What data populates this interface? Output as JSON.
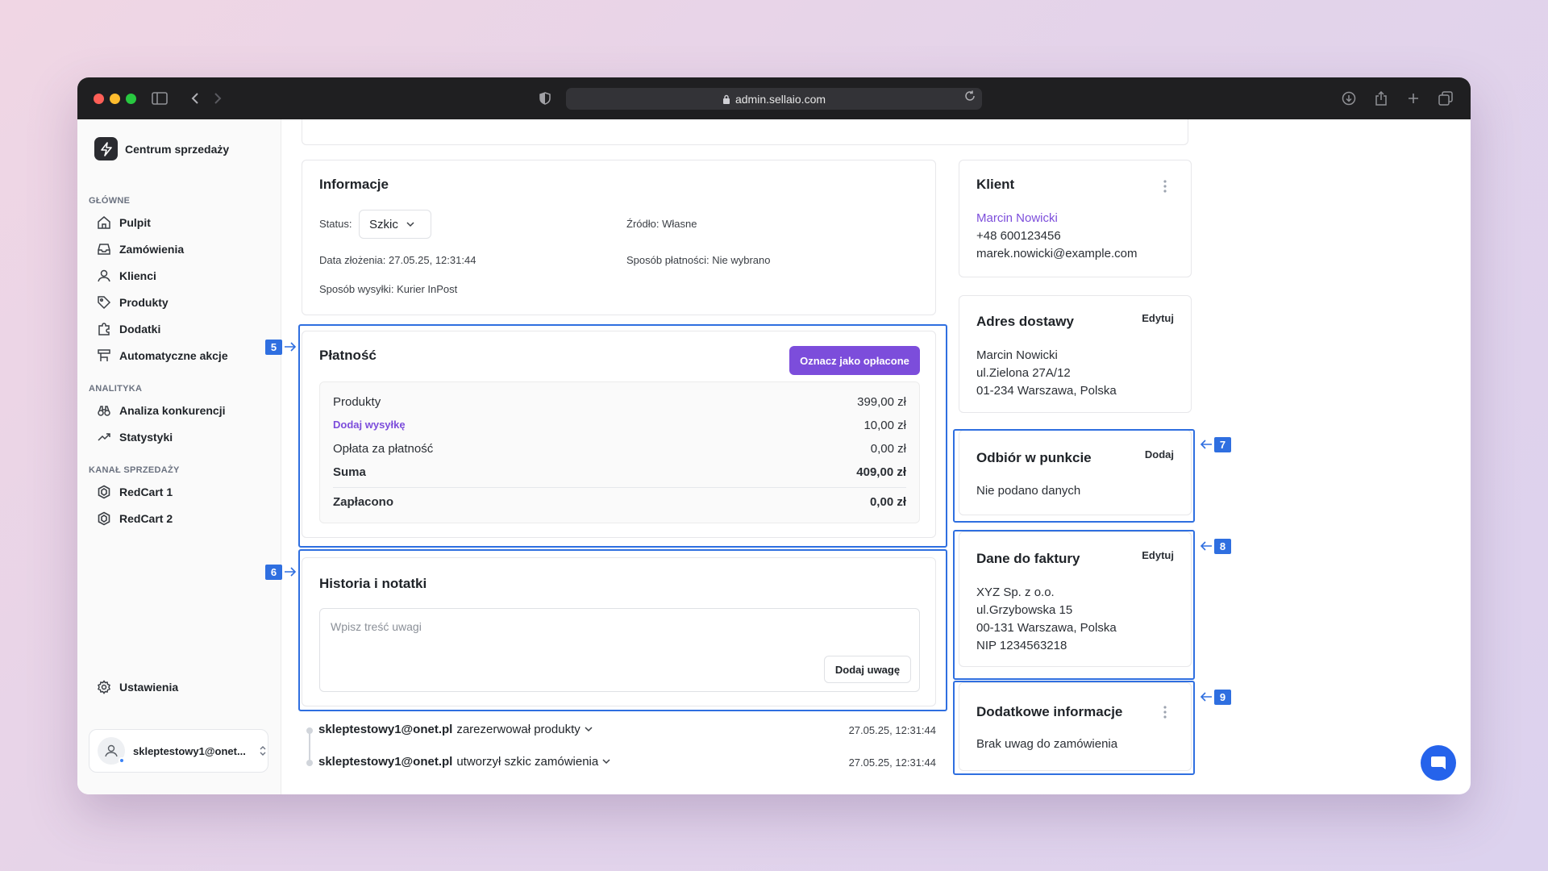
{
  "browser": {
    "url": "admin.sellaio.com"
  },
  "brand": {
    "name": "Centrum sprzedaży"
  },
  "sidebar": {
    "sections": {
      "main": "GŁÓWNE",
      "analytics": "ANALITYKA",
      "channels": "KANAŁ SPRZEDAŻY"
    },
    "main_items": [
      {
        "label": "Pulpit",
        "icon": "home-icon"
      },
      {
        "label": "Zamówienia",
        "icon": "inbox-icon"
      },
      {
        "label": "Klienci",
        "icon": "user-icon"
      },
      {
        "label": "Produkty",
        "icon": "tag-icon"
      },
      {
        "label": "Dodatki",
        "icon": "puzzle-icon"
      },
      {
        "label": "Automatyczne akcje",
        "icon": "workflow-icon"
      }
    ],
    "analytics_items": [
      {
        "label": "Analiza konkurencji",
        "icon": "binoculars-icon"
      },
      {
        "label": "Statystyki",
        "icon": "trend-icon"
      }
    ],
    "channel_items": [
      {
        "label": "RedCart 1",
        "icon": "hexagon-icon"
      },
      {
        "label": "RedCart 2",
        "icon": "hexagon-icon"
      }
    ],
    "settings": "Ustawienia",
    "user": "skleptestowy1@onet..."
  },
  "info": {
    "title": "Informacje",
    "status_label": "Status:",
    "status_value": "Szkic",
    "source": "Źródło: Własne",
    "date": "Data złożenia: 27.05.25, 12:31:44",
    "payment_method": "Sposób płatności: Nie wybrano",
    "shipping_method": "Sposób wysyłki: Kurier InPost"
  },
  "payment": {
    "title": "Płatność",
    "button": "Oznacz jako opłacone",
    "rows": [
      {
        "label": "Produkty",
        "value": "399,00 zł"
      },
      {
        "label": "Dodaj wysyłkę",
        "value": "10,00 zł"
      },
      {
        "label": "Opłata za płatność",
        "value": "0,00 zł"
      },
      {
        "label": "Suma",
        "value": "409,00 zł"
      },
      {
        "label": "Zapłacono",
        "value": "0,00 zł"
      }
    ]
  },
  "history": {
    "title": "Historia i notatki",
    "placeholder": "Wpisz treść uwagi",
    "button": "Dodaj uwagę",
    "events": [
      {
        "user": "skleptestowy1@onet.pl",
        "action": "zarezerwował produkty",
        "time": "27.05.25, 12:31:44"
      },
      {
        "user": "skleptestowy1@onet.pl",
        "action": "utworzył szkic zamówienia",
        "time": "27.05.25, 12:31:44"
      }
    ]
  },
  "client": {
    "title": "Klient",
    "name": "Marcin Nowicki",
    "phone": "+48 600123456",
    "email": "marek.nowicki@example.com"
  },
  "delivery": {
    "title": "Adres dostawy",
    "edit": "Edytuj",
    "lines": [
      "Marcin Nowicki",
      "ul.Zielona 27A/12",
      "01-234 Warszawa, Polska"
    ]
  },
  "pickup": {
    "title": "Odbiór w punkcie",
    "add": "Dodaj",
    "empty": "Nie podano danych"
  },
  "invoice": {
    "title": "Dane do faktury",
    "edit": "Edytuj",
    "lines": [
      "XYZ Sp. z o.o.",
      "ul.Grzybowska 15",
      "00-131 Warszawa, Polska",
      "NIP 1234563218"
    ]
  },
  "extra": {
    "title": "Dodatkowe informacje",
    "text": "Brak uwag do zamówienia"
  },
  "annotations": [
    "5",
    "6",
    "7",
    "8",
    "9"
  ],
  "colors": {
    "accent": "#7c4ddb",
    "highlight": "#2f6fe0",
    "chat": "#2563eb"
  }
}
